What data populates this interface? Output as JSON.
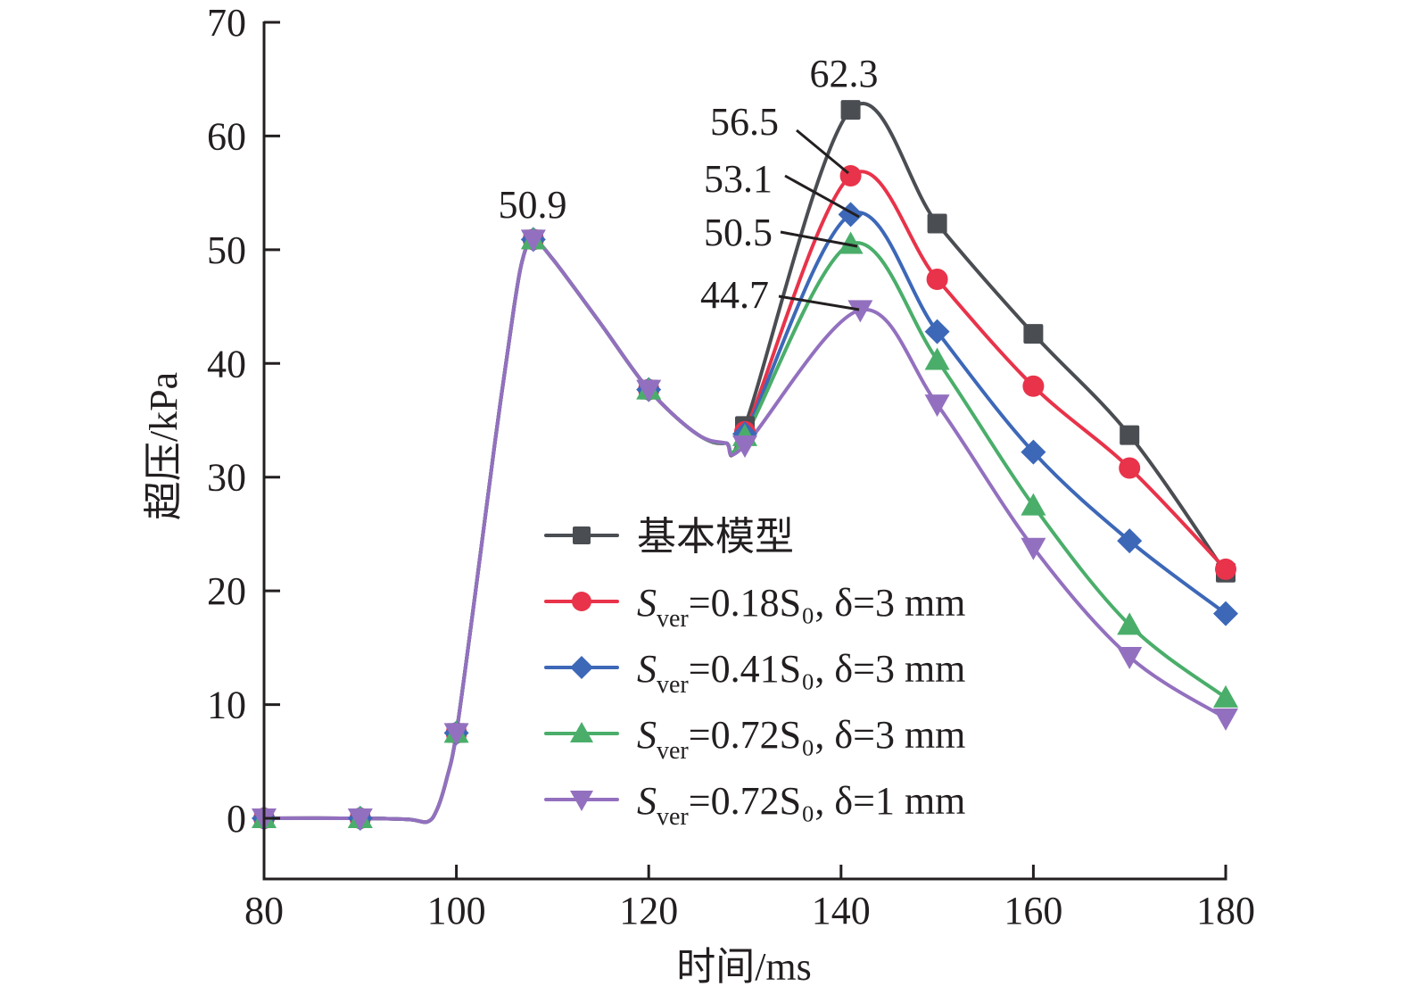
{
  "chart_data": {
    "type": "line",
    "title": "",
    "xlabel": "时间/ms",
    "ylabel": "超压/kPa",
    "xlim": [
      80,
      180
    ],
    "ylim": [
      -5,
      70
    ],
    "x_ticks": [
      80,
      100,
      120,
      140,
      160,
      180
    ],
    "y_ticks": [
      0,
      10,
      20,
      30,
      40,
      50,
      60,
      70
    ],
    "grid": false,
    "legend_position": "center-right",
    "shared_segment": {
      "x": [
        80,
        90,
        95,
        97,
        98,
        99,
        100,
        102,
        104,
        106,
        107,
        108,
        110,
        115,
        120,
        125,
        128
      ],
      "y": [
        0,
        0,
        -0.1,
        -0.3,
        0.8,
        3.5,
        7.5,
        20,
        33,
        45,
        49.5,
        50.9,
        49.2,
        43.5,
        37.7,
        33.8,
        33.0
      ]
    },
    "series": [
      {
        "name": "基本模型",
        "legend": {
          "main": "基本模型",
          "sub": "",
          "rest": ""
        },
        "color": "#4a4d52",
        "marker": "square",
        "x": [
          80,
          90,
          100,
          108,
          120,
          130,
          141,
          150,
          160,
          170,
          180
        ],
        "y": [
          0,
          0,
          7.5,
          50.9,
          37.7,
          34.5,
          62.3,
          52.3,
          42.6,
          33.7,
          21.6
        ],
        "peak_label": "62.3"
      },
      {
        "name": "Sver=0.18S0, δ=3 mm",
        "legend": {
          "main": "S",
          "sub": "ver",
          "rest": "=0.18S₀, δ=3 mm"
        },
        "color": "#e8334a",
        "marker": "circle",
        "x": [
          80,
          90,
          100,
          108,
          120,
          130,
          141,
          150,
          160,
          170,
          180
        ],
        "y": [
          0,
          0,
          7.5,
          50.9,
          37.7,
          34.0,
          56.5,
          47.4,
          38.0,
          30.8,
          21.9
        ],
        "peak_label": "56.5"
      },
      {
        "name": "Sver=0.41S0, δ=3 mm",
        "legend": {
          "main": "S",
          "sub": "ver",
          "rest": "=0.41S₀, δ=3 mm"
        },
        "color": "#3d68b8",
        "marker": "diamond",
        "x": [
          80,
          90,
          100,
          108,
          120,
          130,
          141,
          150,
          160,
          170,
          180
        ],
        "y": [
          0,
          0,
          7.5,
          50.9,
          37.7,
          33.8,
          53.1,
          42.8,
          32.2,
          24.4,
          18.0
        ],
        "peak_label": "53.1"
      },
      {
        "name": "Sver=0.72S0, δ=3 mm",
        "legend": {
          "main": "S",
          "sub": "ver",
          "rest": "=0.72S₀, δ=3 mm"
        },
        "color": "#4aae6a",
        "marker": "triangle-up",
        "x": [
          80,
          90,
          100,
          108,
          120,
          130,
          141,
          150,
          160,
          170,
          180
        ],
        "y": [
          0,
          0,
          7.5,
          50.9,
          37.7,
          33.6,
          50.5,
          40.3,
          27.5,
          17.0,
          10.6
        ],
        "peak_label": "50.5"
      },
      {
        "name": "Sver=0.72S0, δ=1 mm",
        "legend": {
          "main": "S",
          "sub": "ver",
          "rest": "=0.72S₀, δ=1 mm"
        },
        "color": "#9370bf",
        "marker": "triangle-down",
        "x": [
          80,
          90,
          100,
          108,
          120,
          130,
          142,
          150,
          160,
          170,
          180
        ],
        "y": [
          0,
          0,
          7.5,
          50.9,
          37.7,
          32.8,
          44.7,
          36.4,
          23.8,
          14.2,
          8.8
        ],
        "peak_label": "44.7"
      }
    ],
    "annotations": [
      {
        "text": "50.9",
        "x": 108,
        "y": 50.9
      },
      {
        "text": "62.3",
        "x": 141,
        "y": 62.3
      },
      {
        "text": "56.5",
        "x": 141,
        "y": 56.5,
        "leader": true
      },
      {
        "text": "53.1",
        "x": 141,
        "y": 53.1,
        "leader": true
      },
      {
        "text": "50.5",
        "x": 141,
        "y": 50.5,
        "leader": true
      },
      {
        "text": "44.7",
        "x": 142,
        "y": 44.7,
        "leader": true
      }
    ]
  }
}
